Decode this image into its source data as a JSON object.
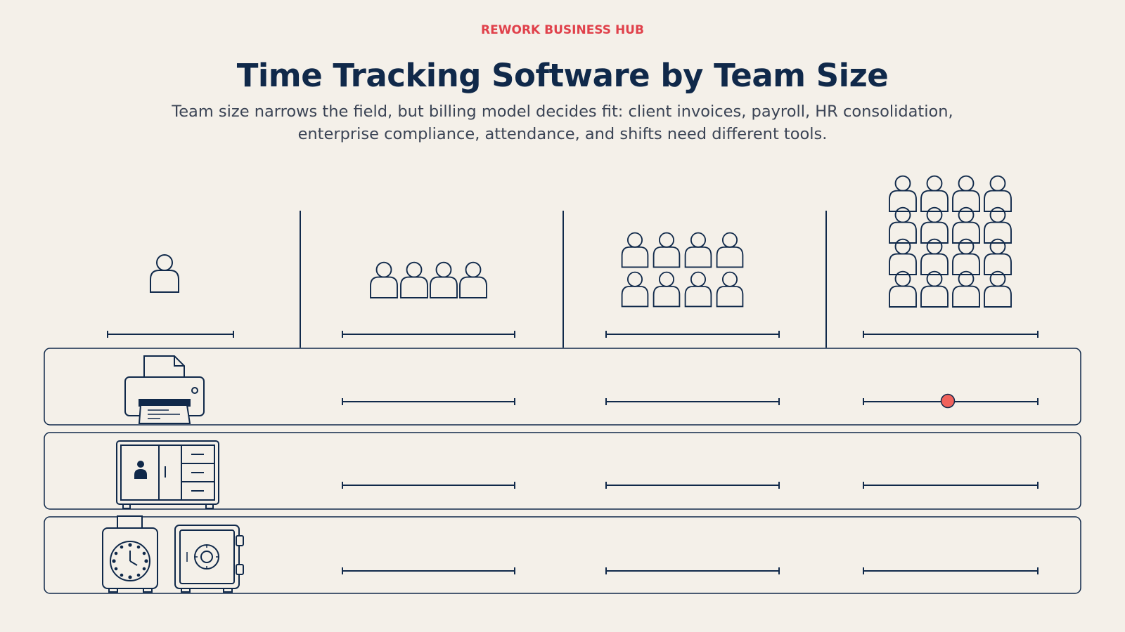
{
  "header": {
    "brand": "REWORK BUSINESS HUB",
    "title": "Time Tracking Software by Team Size",
    "subtitle": "Team size narrows the field, but billing model decides fit: client invoices, payroll, HR consolidation, enterprise compliance, attendance, and shifts need different tools."
  },
  "colors": {
    "accent": "#e0414b",
    "ink": "#10294a",
    "muted_text": "#3b4455",
    "background": "#f4f0e9",
    "marker": "#f0625c"
  },
  "diagram": {
    "columns": [
      {
        "icon": "single-person-icon",
        "people": 1
      },
      {
        "icon": "small-team-icon",
        "people": 4
      },
      {
        "icon": "mid-team-icon",
        "people": 8
      },
      {
        "icon": "large-team-icon",
        "people": 16
      }
    ],
    "rows": [
      {
        "icon": "printer-invoice-icon",
        "marked_column": 4
      },
      {
        "icon": "hr-cabinet-icon",
        "marked_column": null
      },
      {
        "icon": "time-clock-and-safe-icon",
        "marked_column": null
      }
    ]
  }
}
